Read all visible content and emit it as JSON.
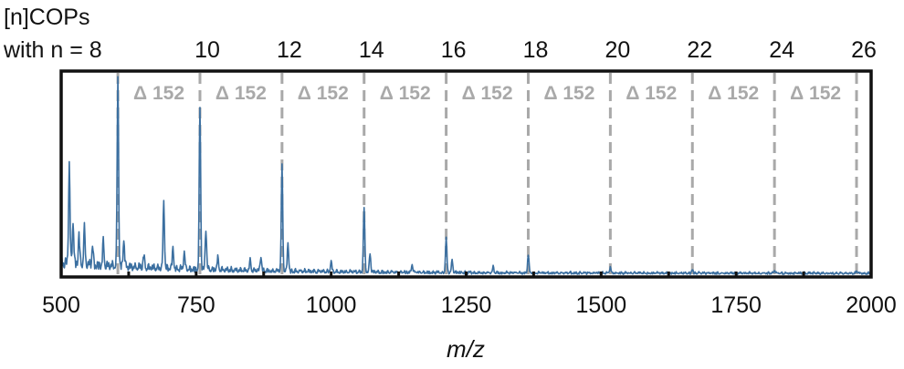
{
  "chart_data": {
    "type": "line",
    "top_label_lines": [
      "[n]COPs",
      "with n = 8"
    ],
    "top_axis_labels": [
      "10",
      "12",
      "14",
      "16",
      "18",
      "20",
      "22",
      "24",
      "26"
    ],
    "xlabel": "m/z",
    "xlim": [
      500,
      2000
    ],
    "x_ticks": [
      500,
      750,
      1000,
      1250,
      1500,
      1750,
      2000
    ],
    "x_tick_labels": [
      "500",
      "750",
      "1000",
      "1250",
      "1500",
      "1750",
      "2000"
    ],
    "ylim": [
      0,
      1
    ],
    "y_ticks_shown": false,
    "series_color": "#3b6fa0",
    "marker_color": "#a9a9a9",
    "marker_positions": [
      605,
      757,
      909,
      1061,
      1213,
      1365,
      1517,
      1669,
      1821,
      1973
    ],
    "delta_labels": [
      "Δ 152",
      "Δ 152",
      "Δ 152",
      "Δ 152",
      "Δ 152",
      "Δ 152",
      "Δ 152",
      "Δ 152",
      "Δ 152"
    ],
    "peaks": [
      {
        "x": 515,
        "y": 0.5
      },
      {
        "x": 522,
        "y": 0.22
      },
      {
        "x": 533,
        "y": 0.15
      },
      {
        "x": 543,
        "y": 0.18
      },
      {
        "x": 558,
        "y": 0.1
      },
      {
        "x": 578,
        "y": 0.12
      },
      {
        "x": 605,
        "y": 0.95
      },
      {
        "x": 616,
        "y": 0.14
      },
      {
        "x": 653,
        "y": 0.06
      },
      {
        "x": 690,
        "y": 0.33
      },
      {
        "x": 707,
        "y": 0.1
      },
      {
        "x": 728,
        "y": 0.08
      },
      {
        "x": 757,
        "y": 0.8
      },
      {
        "x": 768,
        "y": 0.2
      },
      {
        "x": 790,
        "y": 0.06
      },
      {
        "x": 850,
        "y": 0.05
      },
      {
        "x": 870,
        "y": 0.07
      },
      {
        "x": 909,
        "y": 0.52
      },
      {
        "x": 920,
        "y": 0.14
      },
      {
        "x": 1000,
        "y": 0.05
      },
      {
        "x": 1061,
        "y": 0.32
      },
      {
        "x": 1072,
        "y": 0.09
      },
      {
        "x": 1150,
        "y": 0.04
      },
      {
        "x": 1213,
        "y": 0.17
      },
      {
        "x": 1224,
        "y": 0.06
      },
      {
        "x": 1300,
        "y": 0.03
      },
      {
        "x": 1365,
        "y": 0.09
      },
      {
        "x": 1517,
        "y": 0.03
      },
      {
        "x": 1669,
        "y": 0.02
      },
      {
        "x": 1821,
        "y": 0.015
      },
      {
        "x": 1973,
        "y": 0.01
      }
    ]
  }
}
